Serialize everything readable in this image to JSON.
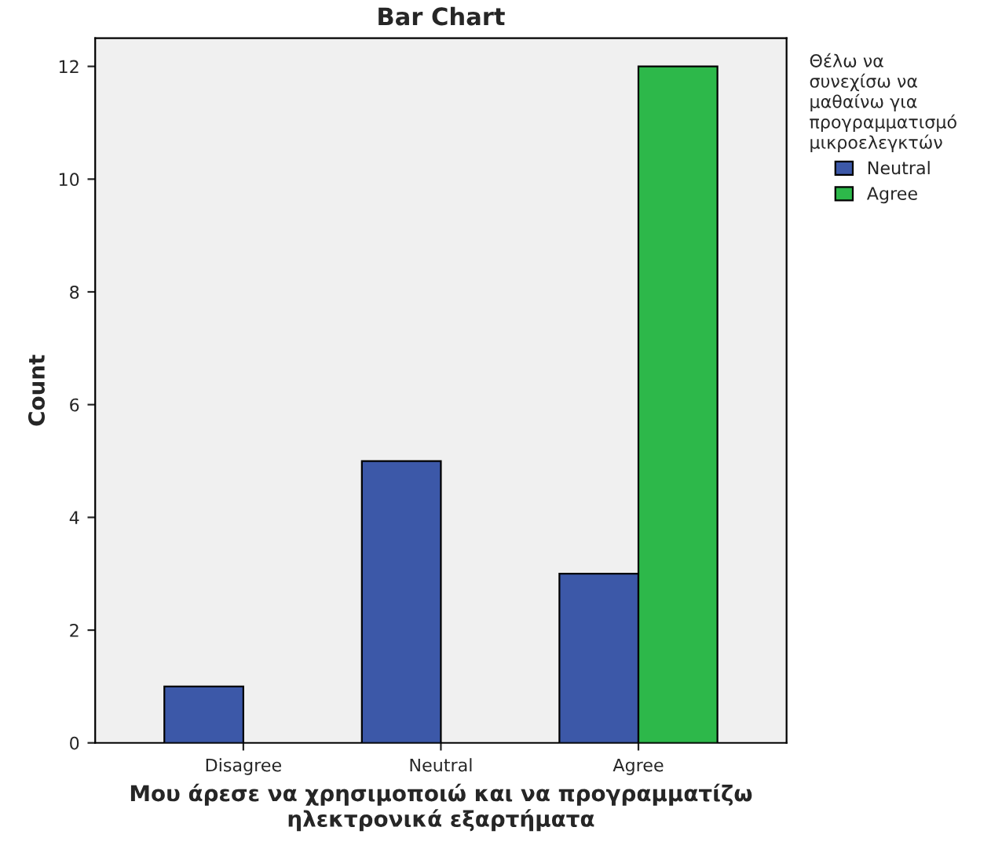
{
  "chart_data": {
    "type": "bar",
    "title": "Bar Chart",
    "xlabel": "Μου άρεσε να χρησιμοποιώ και να προγραμματίζω\nηλεκτρονικά εξαρτήματα",
    "ylabel": "Count",
    "legend_title": "Θέλω να\nσυνεχίσω να\nμαθαίνω για\nπρογραμματισμό\nμικροελεγκτών",
    "categories": [
      "Disagree",
      "Neutral",
      "Agree"
    ],
    "series": [
      {
        "name": "Neutral",
        "color": "#3c58a8",
        "values": [
          1,
          5,
          3
        ]
      },
      {
        "name": "Agree",
        "color": "#2db84a",
        "values": [
          null,
          null,
          12
        ]
      }
    ],
    "ylim": [
      0,
      12.5
    ],
    "yticks": [
      0,
      2,
      4,
      6,
      8,
      10,
      12
    ],
    "grid": false,
    "legend": "top right"
  }
}
